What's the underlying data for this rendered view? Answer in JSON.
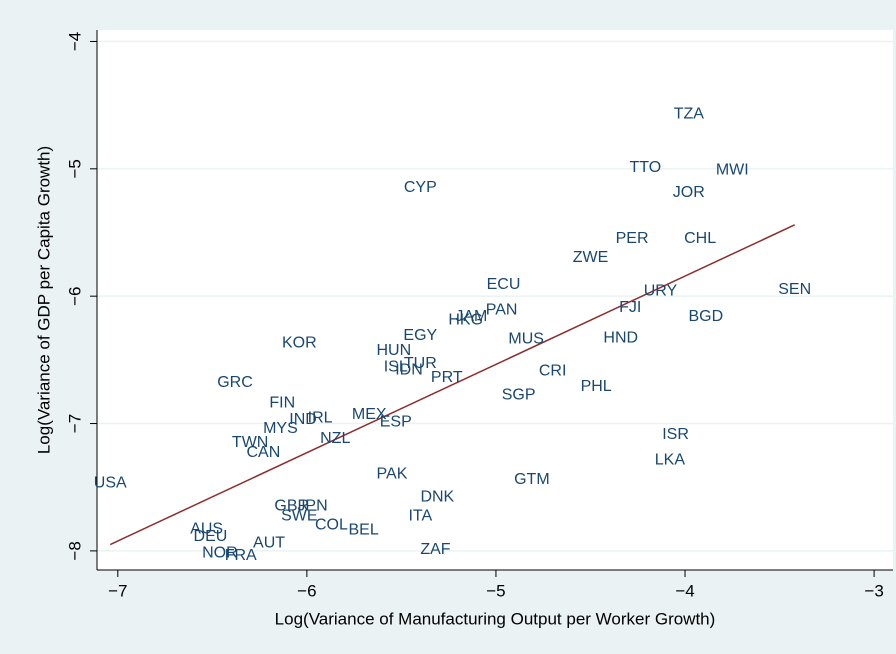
{
  "chart_data": {
    "type": "scatter",
    "x_label": "Log(Variance of Manufacturing Output per Worker Growth)",
    "y_label": "Log(Variance of GDP per Capita Growth)",
    "labels": [
      "TZA",
      "TTO",
      "MWI",
      "JOR",
      "CYP",
      "PER",
      "CHL",
      "ZWE",
      "ECU",
      "URY",
      "SEN",
      "FJI",
      "PAN",
      "BGD",
      "JAM",
      "HKG",
      "EGY",
      "KOR",
      "MUS",
      "HND",
      "HUN",
      "ISL",
      "TUR",
      "IDN",
      "PRT",
      "CRI",
      "GRC",
      "PHL",
      "SGP",
      "FIN",
      "MEX",
      "IND",
      "IRL",
      "ESP",
      "MYS",
      "ISR",
      "NZL",
      "TWN",
      "CAN",
      "LKA",
      "PAK",
      "USA",
      "GTM",
      "DNK",
      "GBR",
      "JPN",
      "ITA",
      "SWE",
      "COL",
      "BEL",
      "AUS",
      "DEU",
      "AUT",
      "NOR",
      "FRA",
      "ZAF"
    ],
    "x": [
      -3.98,
      -4.21,
      -3.75,
      -3.98,
      -5.4,
      -4.28,
      -3.92,
      -4.5,
      -4.96,
      -4.13,
      -3.42,
      -4.29,
      -4.97,
      -3.89,
      -5.13,
      -5.16,
      -5.4,
      -6.04,
      -4.84,
      -4.34,
      -5.54,
      -5.53,
      -5.4,
      -5.46,
      -5.26,
      -4.7,
      -6.38,
      -4.47,
      -4.88,
      -6.13,
      -5.67,
      -6.02,
      -5.93,
      -5.53,
      -6.14,
      -4.05,
      -5.85,
      -6.3,
      -6.23,
      -4.08,
      -5.55,
      -7.04,
      -4.81,
      -5.31,
      -6.08,
      -5.97,
      -5.4,
      -6.04,
      -5.87,
      -5.7,
      -6.53,
      -6.51,
      -6.2,
      -6.46,
      -6.35,
      -5.32
    ],
    "y": [
      -4.57,
      -4.99,
      -5.01,
      -5.19,
      -5.15,
      -5.55,
      -5.55,
      -5.7,
      -5.91,
      -5.96,
      -5.95,
      -6.09,
      -6.11,
      -6.16,
      -6.16,
      -6.19,
      -6.31,
      -6.37,
      -6.34,
      -6.33,
      -6.43,
      -6.56,
      -6.53,
      -6.58,
      -6.64,
      -6.59,
      -6.68,
      -6.71,
      -6.78,
      -6.84,
      -6.93,
      -6.97,
      -6.96,
      -6.99,
      -7.04,
      -7.09,
      -7.12,
      -7.15,
      -7.23,
      -7.29,
      -7.4,
      -7.47,
      -7.44,
      -7.58,
      -7.65,
      -7.65,
      -7.73,
      -7.73,
      -7.8,
      -7.84,
      -7.83,
      -7.89,
      -7.94,
      -8.02,
      -8.04,
      -7.99
    ],
    "color": "#1a476f",
    "fit": {
      "x": [
        -7.04,
        -3.42
      ],
      "y": [
        -7.95,
        -5.44
      ],
      "color": "#8b2d2d"
    },
    "xlim": [
      -7.11,
      -2.9
    ],
    "ylim": [
      -8.15,
      -3.91
    ],
    "xticks": [
      {
        "value": -7,
        "label": "−7"
      },
      {
        "value": -6,
        "label": "−6"
      },
      {
        "value": -5,
        "label": "−5"
      },
      {
        "value": -4,
        "label": "−4"
      },
      {
        "value": -3,
        "label": "−3"
      }
    ],
    "yticks": [
      {
        "value": -4,
        "label": "−4"
      },
      {
        "value": -5,
        "label": "−5"
      },
      {
        "value": -6,
        "label": "−6"
      },
      {
        "value": -7,
        "label": "−7"
      },
      {
        "value": -8,
        "label": "−8"
      }
    ],
    "grid": true
  }
}
